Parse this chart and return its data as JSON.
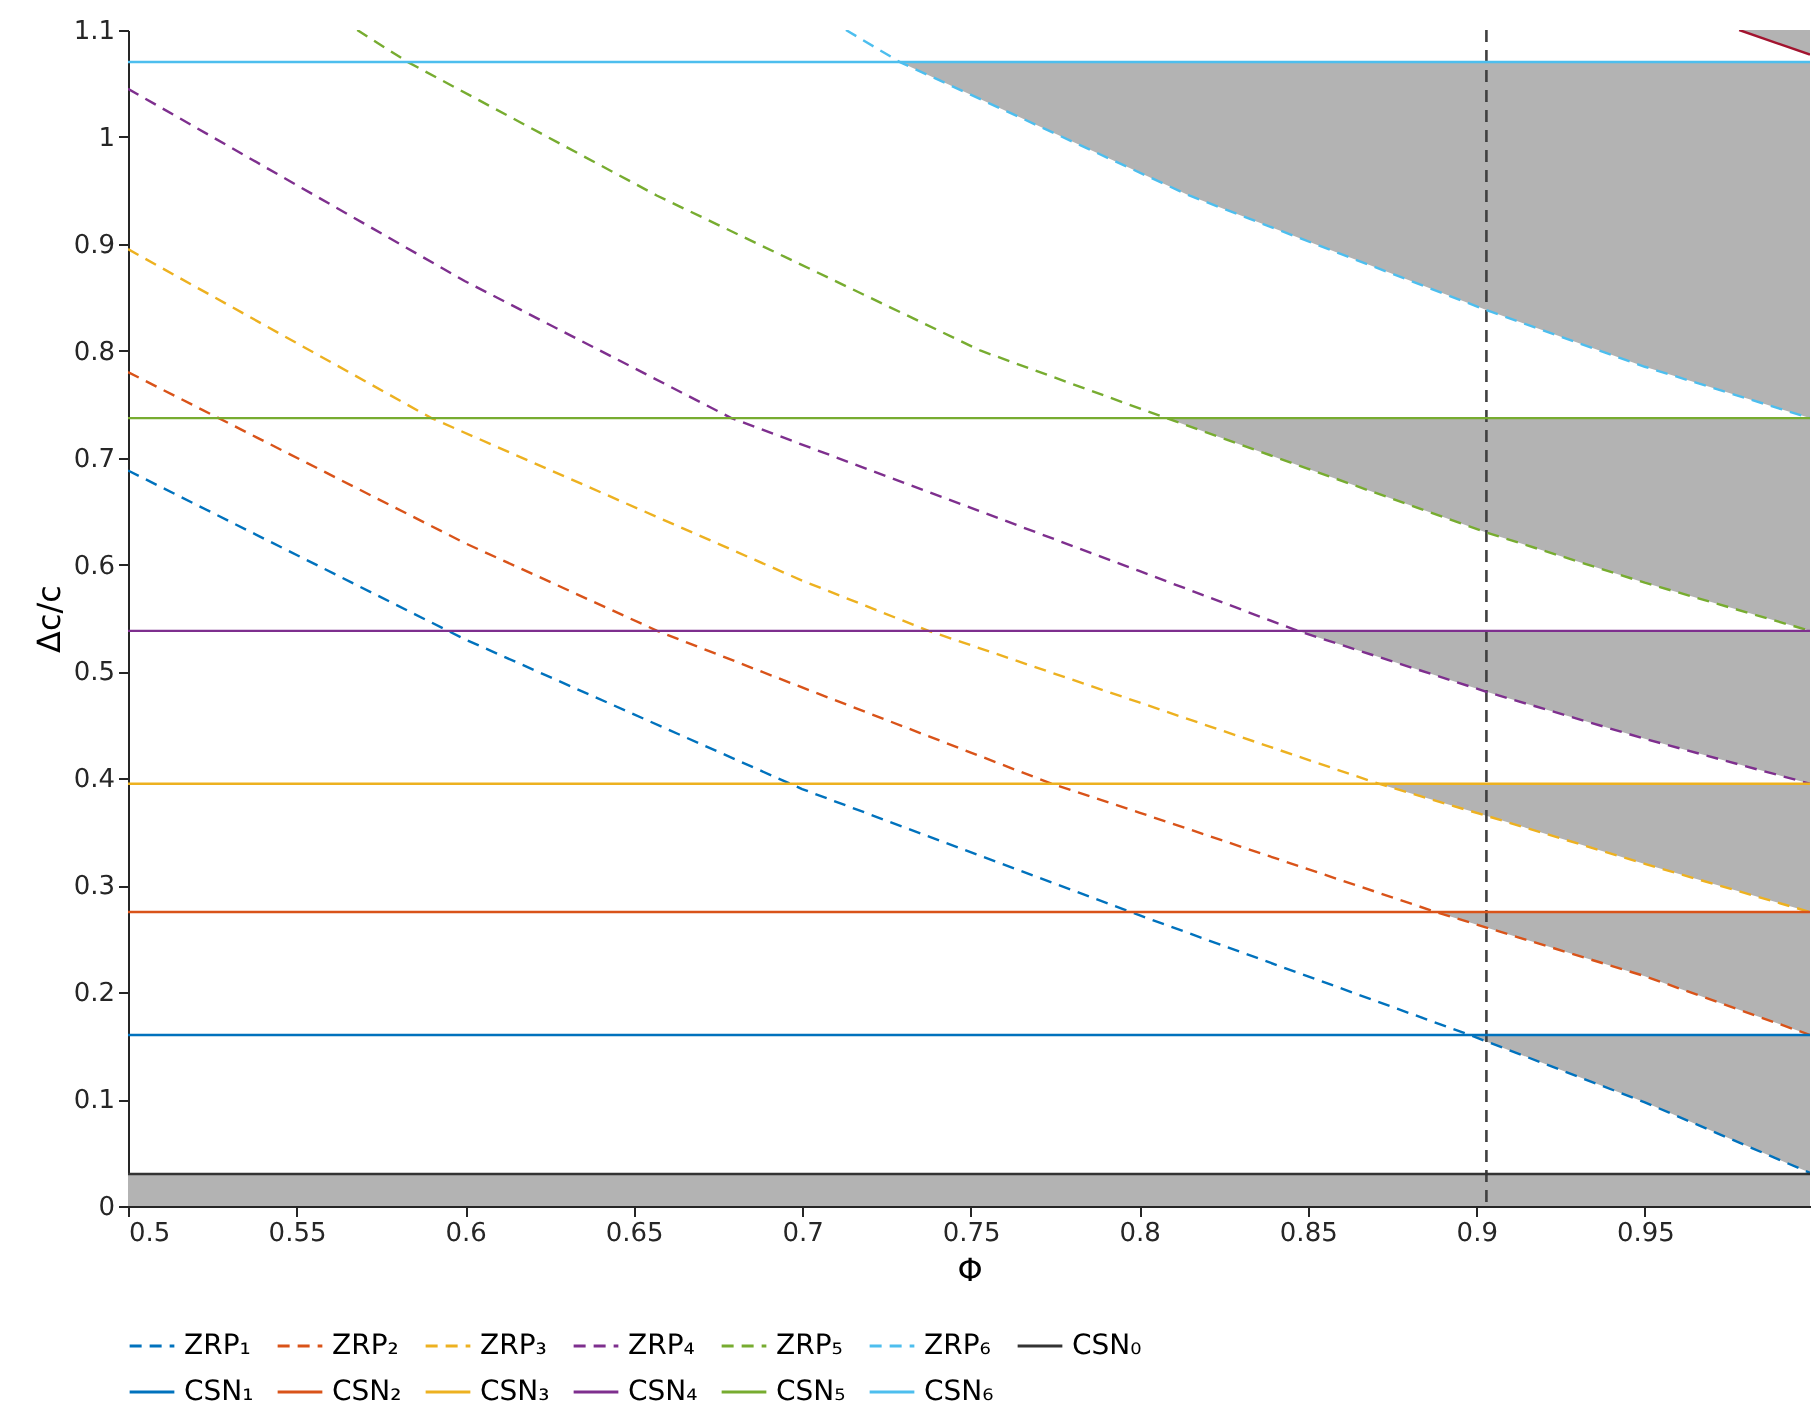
{
  "chart_data": {
    "type": "line",
    "xlabel": "Φ",
    "ylabel": "Δc/c",
    "xlim": [
      0.5,
      0.999
    ],
    "ylim": [
      0,
      1.1
    ],
    "xticks": [
      0.5,
      0.55,
      0.6,
      0.65,
      0.7,
      0.75,
      0.8,
      0.85,
      0.9,
      0.95
    ],
    "yticks": [
      0,
      0.1,
      0.2,
      0.3,
      0.4,
      0.5,
      0.6,
      0.7,
      0.8,
      0.9,
      1,
      1.1
    ],
    "legend": "bottom",
    "series": [
      {
        "name": "ZRP₁",
        "color": "#0072bd",
        "line_style": "dashed",
        "x": [
          0.5,
          0.6,
          0.7,
          0.8,
          0.898,
          0.95,
          0.999
        ],
        "values": [
          0.688,
          0.53,
          0.39,
          0.272,
          0.16,
          0.097,
          0.031
        ],
        "lower": [
          null,
          null,
          null,
          null,
          0.16,
          0.097,
          0.031
        ],
        "upper": [
          null,
          null,
          null,
          null,
          0.16,
          0.16,
          0.16
        ]
      },
      {
        "name": "ZRP₂",
        "color": "#d95319",
        "line_style": "dashed",
        "x": [
          0.5,
          0.6,
          0.657,
          0.7,
          0.774,
          0.8,
          0.888,
          0.95,
          0.999
        ],
        "values": [
          0.78,
          0.62,
          0.538,
          0.485,
          0.395,
          0.368,
          0.275,
          0.215,
          0.16
        ],
        "lower": [
          null,
          null,
          null,
          null,
          null,
          null,
          0.275,
          0.215,
          0.16
        ],
        "upper": [
          null,
          null,
          null,
          null,
          null,
          null,
          0.275,
          0.275,
          0.275
        ]
      },
      {
        "name": "ZRP₃",
        "color": "#edb120",
        "line_style": "dashed",
        "x": [
          0.5,
          0.59,
          0.7,
          0.7375,
          0.8,
          0.871,
          0.903,
          0.95,
          0.999
        ],
        "values": [
          0.895,
          0.737,
          0.585,
          0.538,
          0.471,
          0.395,
          0.365,
          0.32,
          0.275
        ],
        "lower": [
          null,
          null,
          null,
          null,
          null,
          0.395,
          0.365,
          0.32,
          0.275
        ],
        "upper": [
          null,
          null,
          null,
          null,
          null,
          0.395,
          0.395,
          0.395,
          0.395
        ]
      },
      {
        "name": "ZRP₄",
        "color": "#7e2f8e",
        "line_style": "dashed",
        "x": [
          0.5,
          0.6,
          0.679,
          0.8,
          0.847,
          0.903,
          0.95,
          0.999
        ],
        "values": [
          1.045,
          0.865,
          0.737,
          0.594,
          0.538,
          0.481,
          0.437,
          0.395
        ],
        "lower": [
          null,
          null,
          null,
          null,
          0.538,
          0.481,
          0.437,
          0.395
        ],
        "upper": [
          null,
          null,
          null,
          null,
          0.538,
          0.538,
          0.538,
          0.538
        ]
      },
      {
        "name": "ZRP₅",
        "color": "#77ac30",
        "line_style": "dashed",
        "x": [
          0.568,
          0.583,
          0.657,
          0.753,
          0.808,
          0.903,
          0.95,
          0.999
        ],
        "values": [
          1.1,
          1.07,
          0.945,
          0.8,
          0.737,
          0.63,
          0.583,
          0.538
        ],
        "lower": [
          null,
          null,
          null,
          null,
          0.737,
          0.63,
          0.583,
          0.538
        ],
        "upper": [
          null,
          null,
          null,
          null,
          0.737,
          0.737,
          0.737,
          0.737
        ]
      },
      {
        "name": "ZRP₆",
        "color": "#4dbeee",
        "line_style": "dashed",
        "x": [
          0.713,
          0.729,
          0.815,
          0.903,
          0.95,
          0.999
        ],
        "values": [
          1.1,
          1.07,
          0.945,
          0.838,
          0.785,
          0.737
        ],
        "lower": [
          null,
          1.07,
          0.945,
          0.838,
          0.785,
          0.737
        ],
        "upper": [
          null,
          1.07,
          1.07,
          1.07,
          1.07,
          1.07
        ]
      },
      {
        "name": "CSN₀",
        "color": "#333333",
        "line_style": "solid",
        "x": [
          0.5,
          0.999
        ],
        "values": [
          0.03,
          0.03
        ]
      },
      {
        "name": "CSN₁",
        "color": "#0072bd",
        "line_style": "solid",
        "x": [
          0.5,
          0.999
        ],
        "values": [
          0.16,
          0.16
        ]
      },
      {
        "name": "CSN₂",
        "color": "#d95319",
        "line_style": "solid",
        "x": [
          0.5,
          0.999
        ],
        "values": [
          0.275,
          0.275
        ]
      },
      {
        "name": "CSN₃",
        "color": "#edb120",
        "line_style": "solid",
        "x": [
          0.5,
          0.999
        ],
        "values": [
          0.395,
          0.395
        ]
      },
      {
        "name": "CSN₄",
        "color": "#7e2f8e",
        "line_style": "solid",
        "x": [
          0.5,
          0.999
        ],
        "values": [
          0.538,
          0.538
        ]
      },
      {
        "name": "CSN₅",
        "color": "#77ac30",
        "line_style": "solid",
        "x": [
          0.5,
          0.999
        ],
        "values": [
          0.737,
          0.737
        ]
      },
      {
        "name": "CSN₆",
        "color": "#4dbeee",
        "line_style": "solid",
        "x": [
          0.5,
          0.999
        ],
        "values": [
          1.07,
          1.07
        ]
      },
      {
        "color": "#a2142f",
        "line_style": "solid",
        "x": [
          0.978,
          0.999
        ],
        "values": [
          1.1,
          1.077
        ],
        "lower": [
          1.1,
          1.077
        ],
        "upper": [
          1.1,
          1.1
        ]
      }
    ],
    "bands": [
      {
        "axis": "y",
        "from": 0,
        "to": 0.03,
        "color": "#b3b3b3"
      }
    ],
    "ref_lines": [
      {
        "axis": "x",
        "value": 0.903,
        "color": "#404040",
        "line_style": "dashed"
      }
    ]
  }
}
